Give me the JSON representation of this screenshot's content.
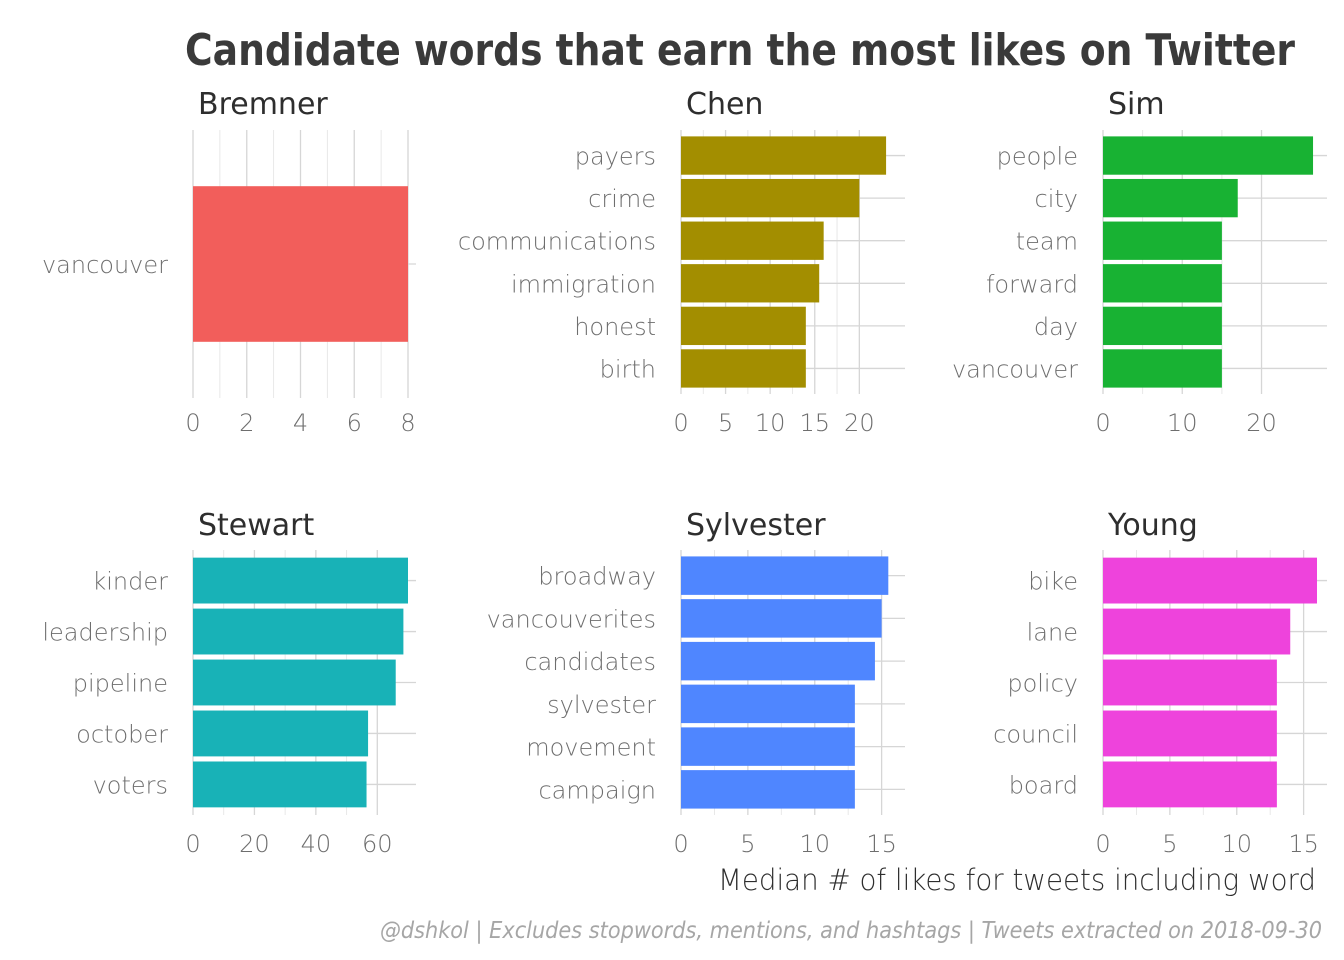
{
  "title": "Candidate words that earn the most likes on Twitter",
  "xlabel": "Median # of likes for tweets including word",
  "caption": "@dshkol | Excludes stopwords, mentions, and hashtags | Tweets extracted on 2018-09-30",
  "chart_data": [
    {
      "type": "bar",
      "orientation": "horizontal",
      "title": "Bremner",
      "color": "#F25E5B",
      "categories": [
        "vancouver"
      ],
      "values": [
        8
      ],
      "xlim": [
        0,
        8
      ],
      "xticks": [
        0,
        2,
        4,
        6,
        8
      ]
    },
    {
      "type": "bar",
      "orientation": "horizontal",
      "title": "Chen",
      "color": "#A38E00",
      "categories": [
        "payers",
        "crime",
        "communications",
        "immigration",
        "honest",
        "birth"
      ],
      "values": [
        23,
        20,
        16,
        15.5,
        14,
        14
      ],
      "xlim": [
        0,
        24
      ],
      "xticks": [
        0,
        5,
        10,
        15,
        20
      ]
    },
    {
      "type": "bar",
      "orientation": "horizontal",
      "title": "Sim",
      "color": "#18B233",
      "categories": [
        "people",
        "city",
        "team",
        "forward",
        "day",
        "vancouver"
      ],
      "values": [
        26.5,
        17,
        15,
        15,
        15,
        15
      ],
      "xlim": [
        0,
        27
      ],
      "xticks": [
        0,
        10,
        20
      ]
    },
    {
      "type": "bar",
      "orientation": "horizontal",
      "title": "Stewart",
      "color": "#18B2B7",
      "categories": [
        "kinder",
        "leadership",
        "pipeline",
        "october",
        "voters"
      ],
      "values": [
        70,
        68.5,
        66,
        57,
        56.5
      ],
      "xlim": [
        0,
        70
      ],
      "xticks": [
        0,
        20,
        40,
        60
      ]
    },
    {
      "type": "bar",
      "orientation": "horizontal",
      "title": "Sylvester",
      "color": "#4F86FF",
      "categories": [
        "broadway",
        "vancouverites",
        "candidates",
        "sylvester",
        "movement",
        "campaign"
      ],
      "values": [
        15.5,
        15,
        14.5,
        13,
        13,
        13
      ],
      "xlim": [
        0,
        16
      ],
      "xticks": [
        0,
        5,
        10,
        15
      ]
    },
    {
      "type": "bar",
      "orientation": "horizontal",
      "title": "Young",
      "color": "#EE43DC",
      "categories": [
        "bike",
        "lane",
        "policy",
        "council",
        "board"
      ],
      "values": [
        16,
        14,
        13,
        13,
        13
      ],
      "xlim": [
        0,
        16
      ],
      "xticks": [
        0,
        5,
        10,
        15
      ]
    }
  ]
}
